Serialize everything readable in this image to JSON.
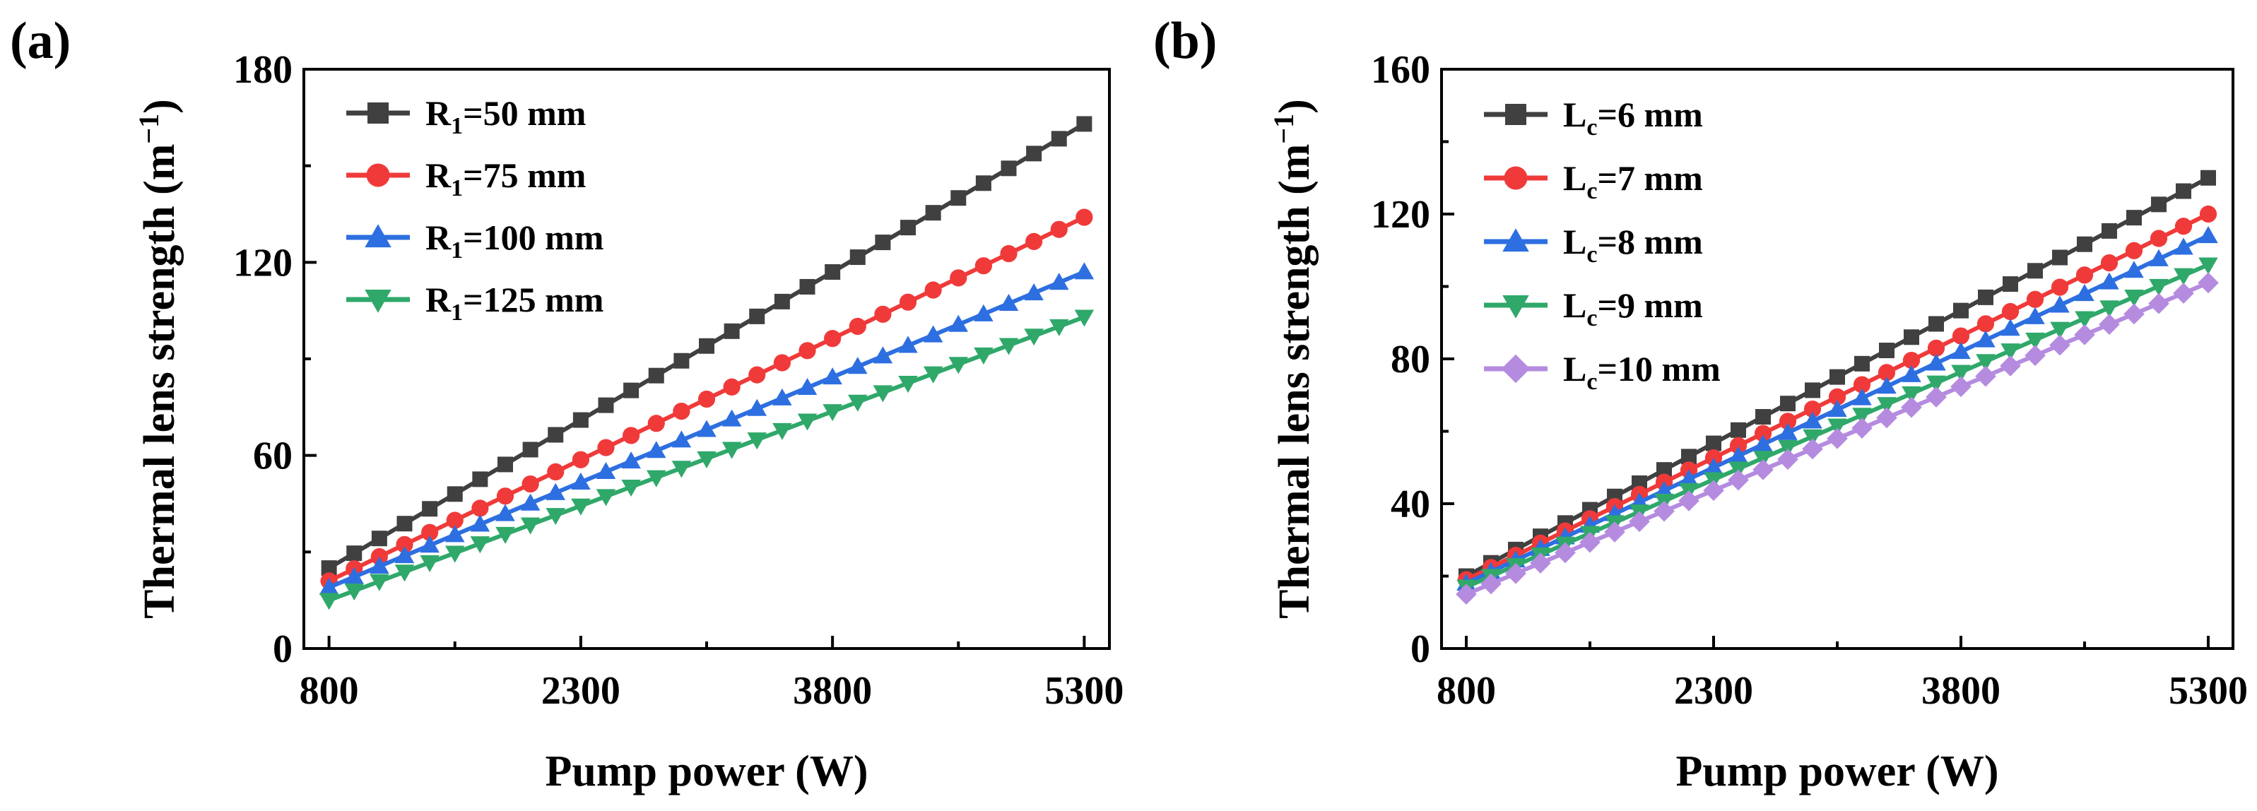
{
  "chart_data": [
    {
      "type": "line",
      "panel_label": "(a)",
      "title": "",
      "xlabel": "Pump power (W)",
      "ylabel": "Thermal lens strength (m−1)",
      "ylabel_main": "Thermal lens strength (m",
      "ylabel_sup": "−1",
      "ylabel_close": ")",
      "xlim": [
        650,
        5450
      ],
      "ylim": [
        0,
        180
      ],
      "xticks": [
        800,
        2300,
        3800,
        5300
      ],
      "yticks": [
        0,
        60,
        120,
        180
      ],
      "xtick_labels": [
        "800",
        "2300",
        "3800",
        "5300"
      ],
      "ytick_labels": [
        "0",
        "60",
        "120",
        "180"
      ],
      "legend_position": "top-left",
      "x_start": 800,
      "x_end": 5300,
      "n_points": 31,
      "series": [
        {
          "name": "R1=50 mm",
          "label_main": "R",
          "label_sub": "1",
          "label_rest": "=50 mm",
          "color": "#404040",
          "marker": "square",
          "y_start": 25,
          "y_end": 163
        },
        {
          "name": "R1=75 mm",
          "label_main": "R",
          "label_sub": "1",
          "label_rest": "=75 mm",
          "color": "#f03a3a",
          "marker": "circle",
          "y_start": 21,
          "y_end": 134
        },
        {
          "name": "R1=100 mm",
          "label_main": "R",
          "label_sub": "1",
          "label_rest": "=100 mm",
          "color": "#2d6fe0",
          "marker": "triangle-up",
          "y_start": 19,
          "y_end": 117
        },
        {
          "name": "R1=125 mm",
          "label_main": "R",
          "label_sub": "1",
          "label_rest": "=125 mm",
          "color": "#2fa86a",
          "marker": "triangle-down",
          "y_start": 15,
          "y_end": 103
        }
      ]
    },
    {
      "type": "line",
      "panel_label": "(b)",
      "title": "",
      "xlabel": "Pump power (W)",
      "ylabel": "Thermal lens strength (m−1)",
      "ylabel_main": "Thermal lens strength (m",
      "ylabel_sup": "−1",
      "ylabel_close": ")",
      "xlim": [
        650,
        5450
      ],
      "ylim": [
        0,
        160
      ],
      "xticks": [
        800,
        2300,
        3800,
        5300
      ],
      "yticks": [
        0,
        40,
        80,
        120,
        160
      ],
      "xtick_labels": [
        "800",
        "2300",
        "3800",
        "5300"
      ],
      "ytick_labels": [
        "0",
        "40",
        "80",
        "120",
        "160"
      ],
      "legend_position": "top-left",
      "x_start": 800,
      "x_end": 5300,
      "n_points": 31,
      "series": [
        {
          "name": "Lc=6 mm",
          "label_main": "L",
          "label_sub": "c",
          "label_rest": "=6 mm",
          "color": "#404040",
          "marker": "square",
          "y_start": 20,
          "y_end": 130
        },
        {
          "name": "Lc=7 mm",
          "label_main": "L",
          "label_sub": "c",
          "label_rest": "=7 mm",
          "color": "#f03a3a",
          "marker": "circle",
          "y_start": 19,
          "y_end": 120
        },
        {
          "name": "Lc=8 mm",
          "label_main": "L",
          "label_sub": "c",
          "label_rest": "=8 mm",
          "color": "#2d6fe0",
          "marker": "triangle-up",
          "y_start": 18,
          "y_end": 114
        },
        {
          "name": "Lc=9 mm",
          "label_main": "L",
          "label_sub": "c",
          "label_rest": "=9 mm",
          "color": "#2fa86a",
          "marker": "triangle-down",
          "y_start": 17,
          "y_end": 106
        },
        {
          "name": "Lc=10 mm",
          "label_main": "L",
          "label_sub": "c",
          "label_rest": "=10 mm",
          "color": "#b58be0",
          "marker": "diamond",
          "y_start": 15,
          "y_end": 101
        }
      ]
    }
  ]
}
